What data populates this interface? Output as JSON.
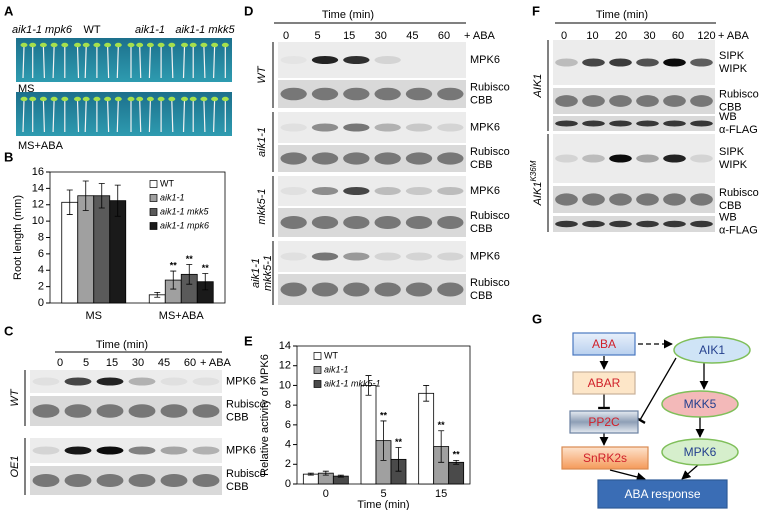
{
  "panel_labels": [
    "A",
    "B",
    "C",
    "D",
    "E",
    "F",
    "G"
  ],
  "panel_a": {
    "genotypes": [
      "aik1-1 mpk6",
      "WT",
      "aik1-1",
      "aik1-1 mkk5"
    ],
    "media": [
      "MS",
      "MS+ABA"
    ]
  },
  "panel_c": {
    "time_label": "Time (min)",
    "times": [
      "0",
      "5",
      "15",
      "30",
      "45",
      "60"
    ],
    "treatment": "+ ABA",
    "groups": [
      {
        "genotype": [
          "WT"
        ],
        "rows": [
          [
            "MPK6"
          ],
          [
            "Rubisco",
            "CBB"
          ]
        ]
      },
      {
        "genotype": [
          "OE1"
        ],
        "rows": [
          [
            "MPK6"
          ],
          [
            "Rubisco",
            "CBB"
          ]
        ]
      }
    ]
  },
  "panel_d": {
    "time_label": "Time (min)",
    "times": [
      "0",
      "5",
      "15",
      "30",
      "45",
      "60"
    ],
    "treatment": "+ ABA",
    "groups": [
      {
        "genotype": [
          "WT"
        ],
        "rows": [
          [
            "MPK6"
          ],
          [
            "Rubisco",
            "CBB"
          ]
        ]
      },
      {
        "genotype": [
          "aik1-1"
        ],
        "rows": [
          [
            "MPK6"
          ],
          [
            "Rubisco",
            "CBB"
          ]
        ]
      },
      {
        "genotype": [
          "mkk5-1"
        ],
        "rows": [
          [
            "MPK6"
          ],
          [
            "Rubisco",
            "CBB"
          ]
        ]
      },
      {
        "genotype": [
          "aik1-1",
          "mkk5-1"
        ],
        "rows": [
          [
            "MPK6"
          ],
          [
            "Rubisco",
            "CBB"
          ]
        ]
      }
    ]
  },
  "panel_f": {
    "time_label": "Time (min)",
    "times": [
      "0",
      "10",
      "20",
      "30",
      "60",
      "120"
    ],
    "treatment": "+ ABA",
    "groups": [
      {
        "genotype": [
          "AIK1"
        ],
        "rows": [
          [
            "SIPK",
            "WIPK"
          ],
          [
            "Rubisco",
            "CBB"
          ],
          [
            "WB",
            "α-FLAG"
          ]
        ]
      },
      {
        "genotype": [
          "AIK1"
        ],
        "superscript": "K36M",
        "rows": [
          [
            "SIPK",
            "WIPK"
          ],
          [
            "Rubisco",
            "CBB"
          ],
          [
            "WB",
            "α-FLAG"
          ]
        ]
      }
    ]
  },
  "panel_g": {
    "nodes": [
      "ABA",
      "ABAR",
      "PP2C",
      "SnRK2s",
      "AIK1",
      "MKK5",
      "MPK6",
      "ABA response"
    ]
  },
  "chart_data": [
    {
      "type": "bar",
      "ylabel": "Root length (mm)",
      "categories": [
        "MS",
        "MS+ABA"
      ],
      "series": [
        {
          "name": "WT",
          "color": "#ffffff",
          "values": [
            12.3,
            1.0
          ],
          "errors": [
            1.5,
            0.3
          ],
          "significance": [
            null,
            null
          ]
        },
        {
          "name": "aik1-1",
          "color": "#a0a0a0",
          "values": [
            13.1,
            2.8
          ],
          "errors": [
            1.8,
            1.1
          ],
          "significance": [
            null,
            "**"
          ]
        },
        {
          "name": "aik1-1 mkk5",
          "color": "#5a5a5a",
          "values": [
            13.1,
            3.5
          ],
          "errors": [
            1.5,
            1.2
          ],
          "significance": [
            null,
            "**"
          ]
        },
        {
          "name": "aik1-1 mpk6",
          "color": "#1a1a1a",
          "values": [
            12.5,
            2.6
          ],
          "errors": [
            1.9,
            1.0
          ],
          "significance": [
            null,
            "**"
          ]
        }
      ],
      "ylim": [
        0,
        16
      ],
      "yticks": [
        0,
        2,
        4,
        6,
        8,
        10,
        12,
        14,
        16
      ],
      "legend": "upper right"
    },
    {
      "type": "bar",
      "ylabel": "Relative activity of MPK6",
      "xlabel": "Time (min)",
      "categories": [
        "0",
        "5",
        "15"
      ],
      "series": [
        {
          "name": "WT",
          "color": "#ffffff",
          "values": [
            1.0,
            10.0,
            9.2
          ],
          "errors": [
            0.1,
            1.0,
            0.8
          ],
          "significance": [
            null,
            null,
            null
          ]
        },
        {
          "name": "aik1-1",
          "color": "#a0a0a0",
          "values": [
            1.1,
            4.4,
            3.8
          ],
          "errors": [
            0.2,
            2.0,
            1.6
          ],
          "significance": [
            null,
            "**",
            "**"
          ]
        },
        {
          "name": "aik1-1 mkk5-1",
          "color": "#4a4a4a",
          "values": [
            0.8,
            2.5,
            2.2
          ],
          "errors": [
            0.1,
            1.2,
            0.2
          ],
          "significance": [
            null,
            "**",
            "**"
          ]
        }
      ],
      "ylim": [
        0,
        14
      ],
      "yticks": [
        0,
        2,
        4,
        6,
        8,
        10,
        12,
        14
      ],
      "legend": "upper left"
    }
  ]
}
